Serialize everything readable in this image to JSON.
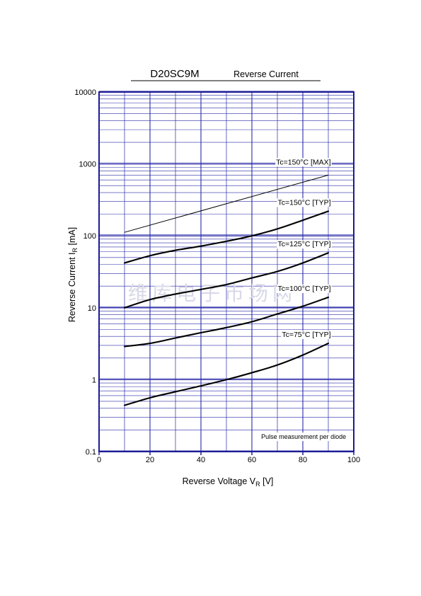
{
  "header": {
    "model": "D20SC9M",
    "subtitle": "Reverse  Current"
  },
  "watermark": "维库电子市场网",
  "chart_data": {
    "type": "line",
    "title": "D20SC9M",
    "subtitle": "Reverse  Current",
    "xlabel": "Reverse Voltage  V",
    "xlabel_sub": "R",
    "xlabel_unit": "  [V]",
    "ylabel": "Reverse Current  I",
    "ylabel_sub": "R",
    "ylabel_unit": "  [mA]",
    "xlim": [
      0,
      100
    ],
    "ylim": [
      0.1,
      10000
    ],
    "y_scale": "log",
    "x_ticks": [
      0,
      20,
      40,
      60,
      80,
      100
    ],
    "x_tick_labels": [
      "0",
      "20",
      "40",
      "60",
      "80",
      "100"
    ],
    "y_ticks": [
      0.1,
      1,
      10,
      100,
      1000,
      10000
    ],
    "y_tick_labels": [
      "0.1",
      "1",
      "10",
      "100",
      "1000",
      "10000"
    ],
    "grid": true,
    "note": "Pulse measurement per diode",
    "series": [
      {
        "name": "Tc=150°C [MAX]",
        "x": [
          10,
          90
        ],
        "y": [
          112,
          700
        ],
        "stroke": "thin"
      },
      {
        "name": "Tc=150°C [TYP]",
        "x": [
          10,
          20,
          30,
          40,
          50,
          60,
          70,
          80,
          90
        ],
        "y": [
          42,
          53,
          63,
          72,
          84,
          100,
          125,
          165,
          220
        ],
        "stroke": "thick"
      },
      {
        "name": "Tc=125°C [TYP]",
        "x": [
          10,
          20,
          30,
          40,
          50,
          60,
          70,
          80,
          90
        ],
        "y": [
          10,
          13,
          15.5,
          18,
          21,
          26,
          32,
          42,
          58
        ],
        "stroke": "thick"
      },
      {
        "name": "Tc=100°C [TYP]",
        "x": [
          10,
          20,
          30,
          40,
          50,
          60,
          70,
          80,
          90
        ],
        "y": [
          2.9,
          3.2,
          3.8,
          4.5,
          5.3,
          6.4,
          8.2,
          10.5,
          14
        ],
        "stroke": "thick"
      },
      {
        "name": "Tc=75°C [TYP]",
        "x": [
          10,
          20,
          30,
          40,
          50,
          60,
          70,
          80,
          90
        ],
        "y": [
          0.44,
          0.56,
          0.68,
          0.82,
          1.0,
          1.25,
          1.6,
          2.2,
          3.2
        ],
        "stroke": "thick"
      }
    ],
    "colors": {
      "grid": "#2a2aa8",
      "axis": "#1c1c96",
      "curve": "#000000"
    }
  }
}
